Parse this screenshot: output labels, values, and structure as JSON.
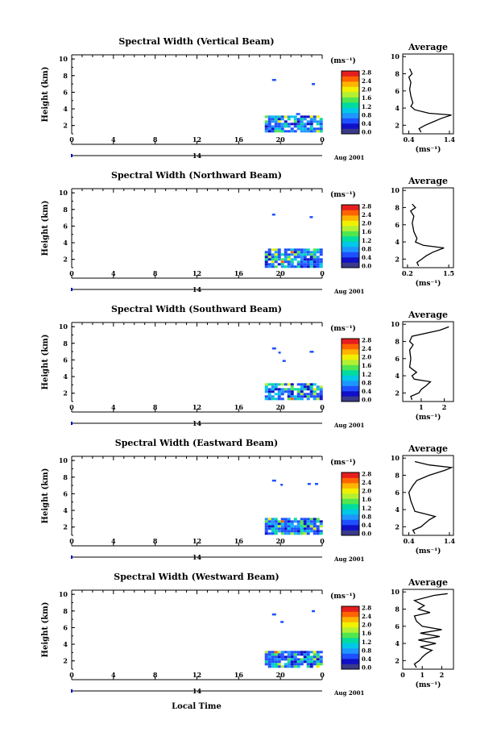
{
  "figure": {
    "xlabel_bottom": "Local Time",
    "colorbar_unit": "(ms⁻¹)",
    "date_label": "Aug 2001",
    "day_label": "14",
    "avg_title": "Average",
    "avg_unit": "(ms⁻¹)",
    "colors": [
      "#3a3a8a",
      "#1010c8",
      "#1e50ff",
      "#1e96ff",
      "#00c8e6",
      "#00dca0",
      "#50e650",
      "#b4f032",
      "#f0f000",
      "#ffb400",
      "#ff6400",
      "#e61e1e"
    ]
  },
  "chart_data": [
    {
      "type": "heatmap",
      "title": "Spectral Width (Vertical Beam)",
      "ylabel": "Height (km)",
      "x_ticks": [
        "0",
        "4",
        "8",
        "12",
        "16",
        "20",
        "0"
      ],
      "y_ticks": [
        "2",
        "4",
        "6",
        "8",
        "10"
      ],
      "colorbar_ticks": [
        "0.0",
        "0.4",
        "0.8",
        "1.2",
        "1.6",
        "2.0",
        "2.4",
        "2.8"
      ],
      "avg_x_ticks": [
        "0.4",
        "1.4"
      ],
      "avg_xlim": [
        0.25,
        1.5
      ],
      "avg_y_ticks": [
        "2",
        "4",
        "6",
        "8",
        "10"
      ],
      "avg_profile": [
        [
          0.7,
          1.2
        ],
        [
          0.65,
          1.6
        ],
        [
          0.8,
          2.0
        ],
        [
          1.0,
          2.4
        ],
        [
          1.2,
          2.8
        ],
        [
          1.45,
          3.2
        ],
        [
          0.9,
          3.4
        ],
        [
          0.55,
          3.8
        ],
        [
          0.45,
          4.2
        ],
        [
          0.5,
          4.6
        ],
        [
          0.45,
          5.4
        ],
        [
          0.42,
          6.2
        ],
        [
          0.45,
          7.0
        ],
        [
          0.4,
          7.6
        ],
        [
          0.48,
          8.0
        ],
        [
          0.42,
          8.6
        ]
      ],
      "data_patch": {
        "x_start": 18.5,
        "x_end": 24,
        "y_max": 3.2
      },
      "isolated": [
        [
          19.2,
          7.6,
          5
        ],
        [
          23.0,
          7.1,
          4
        ],
        [
          21.5,
          3.5,
          5
        ]
      ]
    },
    {
      "type": "heatmap",
      "title": "Spectral Width (Northward Beam)",
      "ylabel": "Height (km)",
      "x_ticks": [
        "0",
        "4",
        "8",
        "12",
        "16",
        "20",
        "0"
      ],
      "y_ticks": [
        "2",
        "4",
        "6",
        "8",
        "10"
      ],
      "colorbar_ticks": [
        "0.0",
        "0.4",
        "0.8",
        "1.2",
        "1.6",
        "2.0",
        "2.4",
        "2.8"
      ],
      "avg_x_ticks": [
        "0.2",
        "1.5"
      ],
      "avg_xlim": [
        0.05,
        1.65
      ],
      "avg_y_ticks": [
        "2",
        "4",
        "6",
        "8",
        "10"
      ],
      "avg_profile": [
        [
          0.55,
          1.2
        ],
        [
          0.5,
          1.6
        ],
        [
          0.65,
          2.0
        ],
        [
          0.8,
          2.4
        ],
        [
          1.0,
          2.8
        ],
        [
          1.35,
          3.3
        ],
        [
          0.7,
          3.6
        ],
        [
          0.45,
          4.0
        ],
        [
          0.5,
          4.4
        ],
        [
          0.4,
          5.2
        ],
        [
          0.35,
          6.2
        ],
        [
          0.4,
          7.0
        ],
        [
          0.3,
          7.6
        ],
        [
          0.45,
          8.0
        ],
        [
          0.35,
          8.4
        ]
      ],
      "data_patch": {
        "x_start": 18.5,
        "x_end": 24,
        "y_max": 3.3
      },
      "isolated": [
        [
          19.2,
          7.5,
          4
        ],
        [
          22.8,
          7.2,
          4
        ]
      ]
    },
    {
      "type": "heatmap",
      "title": "Spectral Width (Southward Beam)",
      "ylabel": "Height (km)",
      "x_ticks": [
        "0",
        "4",
        "8",
        "12",
        "16",
        "20",
        "0"
      ],
      "y_ticks": [
        "2",
        "4",
        "6",
        "8",
        "10"
      ],
      "colorbar_ticks": [
        "0.0",
        "0.4",
        "0.8",
        "1.2",
        "1.6",
        "2.0",
        "2.4",
        "2.8"
      ],
      "avg_x_ticks": [
        "1",
        "2"
      ],
      "avg_xlim": [
        0.2,
        2.4
      ],
      "avg_y_ticks": [
        "2",
        "4",
        "6",
        "8",
        "10"
      ],
      "avg_profile": [
        [
          0.6,
          1.2
        ],
        [
          0.55,
          1.6
        ],
        [
          0.9,
          2.0
        ],
        [
          1.0,
          2.4
        ],
        [
          1.2,
          2.8
        ],
        [
          1.4,
          3.3
        ],
        [
          0.7,
          3.6
        ],
        [
          0.6,
          4.0
        ],
        [
          0.8,
          4.4
        ],
        [
          0.5,
          5.0
        ],
        [
          0.55,
          6.0
        ],
        [
          0.5,
          7.0
        ],
        [
          0.65,
          7.6
        ],
        [
          0.5,
          8.0
        ],
        [
          0.6,
          8.6
        ],
        [
          1.8,
          9.3
        ],
        [
          2.2,
          9.7
        ]
      ],
      "data_patch": {
        "x_start": 18.5,
        "x_end": 24,
        "y_max": 3.2
      },
      "isolated": [
        [
          19.2,
          7.5,
          5
        ],
        [
          20.2,
          6.0,
          4
        ],
        [
          22.8,
          7.1,
          5
        ],
        [
          19.8,
          7.0,
          3
        ]
      ]
    },
    {
      "type": "heatmap",
      "title": "Spectral Width (Eastward Beam)",
      "ylabel": "Height (km)",
      "x_ticks": [
        "0",
        "4",
        "8",
        "12",
        "16",
        "20",
        "0"
      ],
      "y_ticks": [
        "2",
        "4",
        "6",
        "8",
        "10"
      ],
      "colorbar_ticks": [
        "0.0",
        "0.4",
        "0.8",
        "1.2",
        "1.6",
        "2.0",
        "2.4",
        "2.8"
      ],
      "avg_x_ticks": [
        "0.4",
        "1.4"
      ],
      "avg_xlim": [
        0.25,
        1.5
      ],
      "avg_y_ticks": [
        "2",
        "4",
        "6",
        "8",
        "10"
      ],
      "avg_profile": [
        [
          0.55,
          1.2
        ],
        [
          0.5,
          1.6
        ],
        [
          0.7,
          2.0
        ],
        [
          0.8,
          2.4
        ],
        [
          0.9,
          2.8
        ],
        [
          1.05,
          3.2
        ],
        [
          0.8,
          3.5
        ],
        [
          0.55,
          3.8
        ],
        [
          0.5,
          4.4
        ],
        [
          0.45,
          5.0
        ],
        [
          0.4,
          6.0
        ],
        [
          0.5,
          6.8
        ],
        [
          0.6,
          7.4
        ],
        [
          0.9,
          8.0
        ],
        [
          1.3,
          8.6
        ],
        [
          1.45,
          8.9
        ],
        [
          0.9,
          9.2
        ],
        [
          0.55,
          9.6
        ]
      ],
      "data_patch": {
        "x_start": 18.5,
        "x_end": 24,
        "y_max": 3.1
      },
      "isolated": [
        [
          19.2,
          7.7,
          5
        ],
        [
          20.0,
          7.2,
          3
        ],
        [
          22.6,
          7.3,
          4
        ],
        [
          23.3,
          7.3,
          4
        ]
      ]
    },
    {
      "type": "heatmap",
      "title": "Spectral Width (Westward Beam)",
      "ylabel": "Height (km)",
      "x_ticks": [
        "0",
        "4",
        "8",
        "12",
        "16",
        "20",
        "0"
      ],
      "y_ticks": [
        "2",
        "4",
        "6",
        "8",
        "10"
      ],
      "colorbar_ticks": [
        "0.0",
        "0.4",
        "0.8",
        "1.2",
        "1.6",
        "2.0",
        "2.4",
        "2.8"
      ],
      "avg_x_ticks": [
        "0",
        "1",
        "2"
      ],
      "avg_xlim": [
        0,
        2.6
      ],
      "avg_y_ticks": [
        "2",
        "4",
        "6",
        "8",
        "10"
      ],
      "avg_profile": [
        [
          0.7,
          1.2
        ],
        [
          0.6,
          1.6
        ],
        [
          0.85,
          2.0
        ],
        [
          1.0,
          2.4
        ],
        [
          1.2,
          2.8
        ],
        [
          1.5,
          3.2
        ],
        [
          0.9,
          3.6
        ],
        [
          1.7,
          4.0
        ],
        [
          0.8,
          4.4
        ],
        [
          1.9,
          4.8
        ],
        [
          0.9,
          5.2
        ],
        [
          2.0,
          5.6
        ],
        [
          1.0,
          6.0
        ],
        [
          0.7,
          6.6
        ],
        [
          0.6,
          7.2
        ],
        [
          1.4,
          7.6
        ],
        [
          0.8,
          8.0
        ],
        [
          1.1,
          8.4
        ],
        [
          0.6,
          9.0
        ],
        [
          1.6,
          9.6
        ],
        [
          2.3,
          9.8
        ]
      ],
      "data_patch": {
        "x_start": 18.5,
        "x_end": 24,
        "y_max": 3.2
      },
      "isolated": [
        [
          19.2,
          7.7,
          5
        ],
        [
          20.0,
          6.8,
          4
        ],
        [
          23.0,
          8.1,
          4
        ]
      ]
    }
  ]
}
